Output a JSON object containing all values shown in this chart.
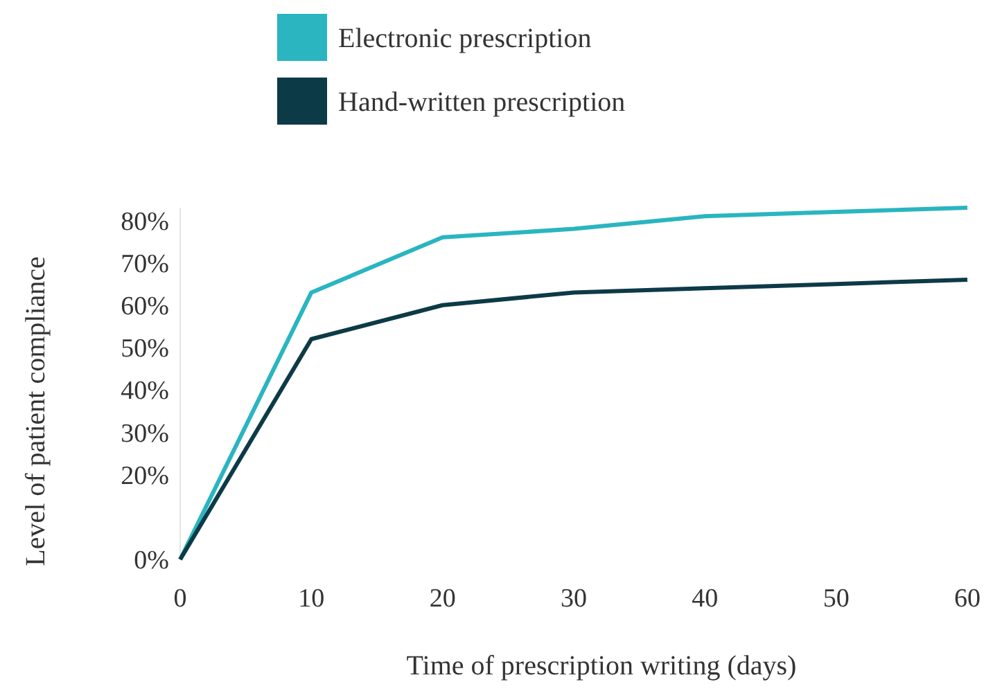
{
  "chart_data": {
    "type": "line",
    "xlabel": "Time of prescription writing (days)",
    "ylabel": "Level of patient compliance",
    "x": [
      0,
      10,
      20,
      30,
      40,
      50,
      60
    ],
    "series": [
      {
        "name": "Electronic prescription",
        "color": "#2ab5c0",
        "values": [
          0,
          63,
          76,
          78,
          81,
          82,
          83
        ]
      },
      {
        "name": "Hand-written prescription",
        "color": "#0d3a47",
        "values": [
          0,
          52,
          60,
          63,
          64,
          65,
          66
        ]
      }
    ],
    "xlim": [
      0,
      60
    ],
    "xticks": [
      0,
      10,
      20,
      30,
      40,
      50,
      60
    ],
    "ylim": [
      0,
      83
    ],
    "yticks": [
      {
        "value": 0,
        "label": "0%"
      },
      {
        "value": 20,
        "label": "20%"
      },
      {
        "value": 30,
        "label": "30%"
      },
      {
        "value": 40,
        "label": "40%"
      },
      {
        "value": 50,
        "label": "50%"
      },
      {
        "value": 60,
        "label": "60%"
      },
      {
        "value": 70,
        "label": "70%"
      },
      {
        "value": 80,
        "label": "80%"
      }
    ],
    "grid": false,
    "legend": "top",
    "marker": "none",
    "line_style": "solid"
  }
}
